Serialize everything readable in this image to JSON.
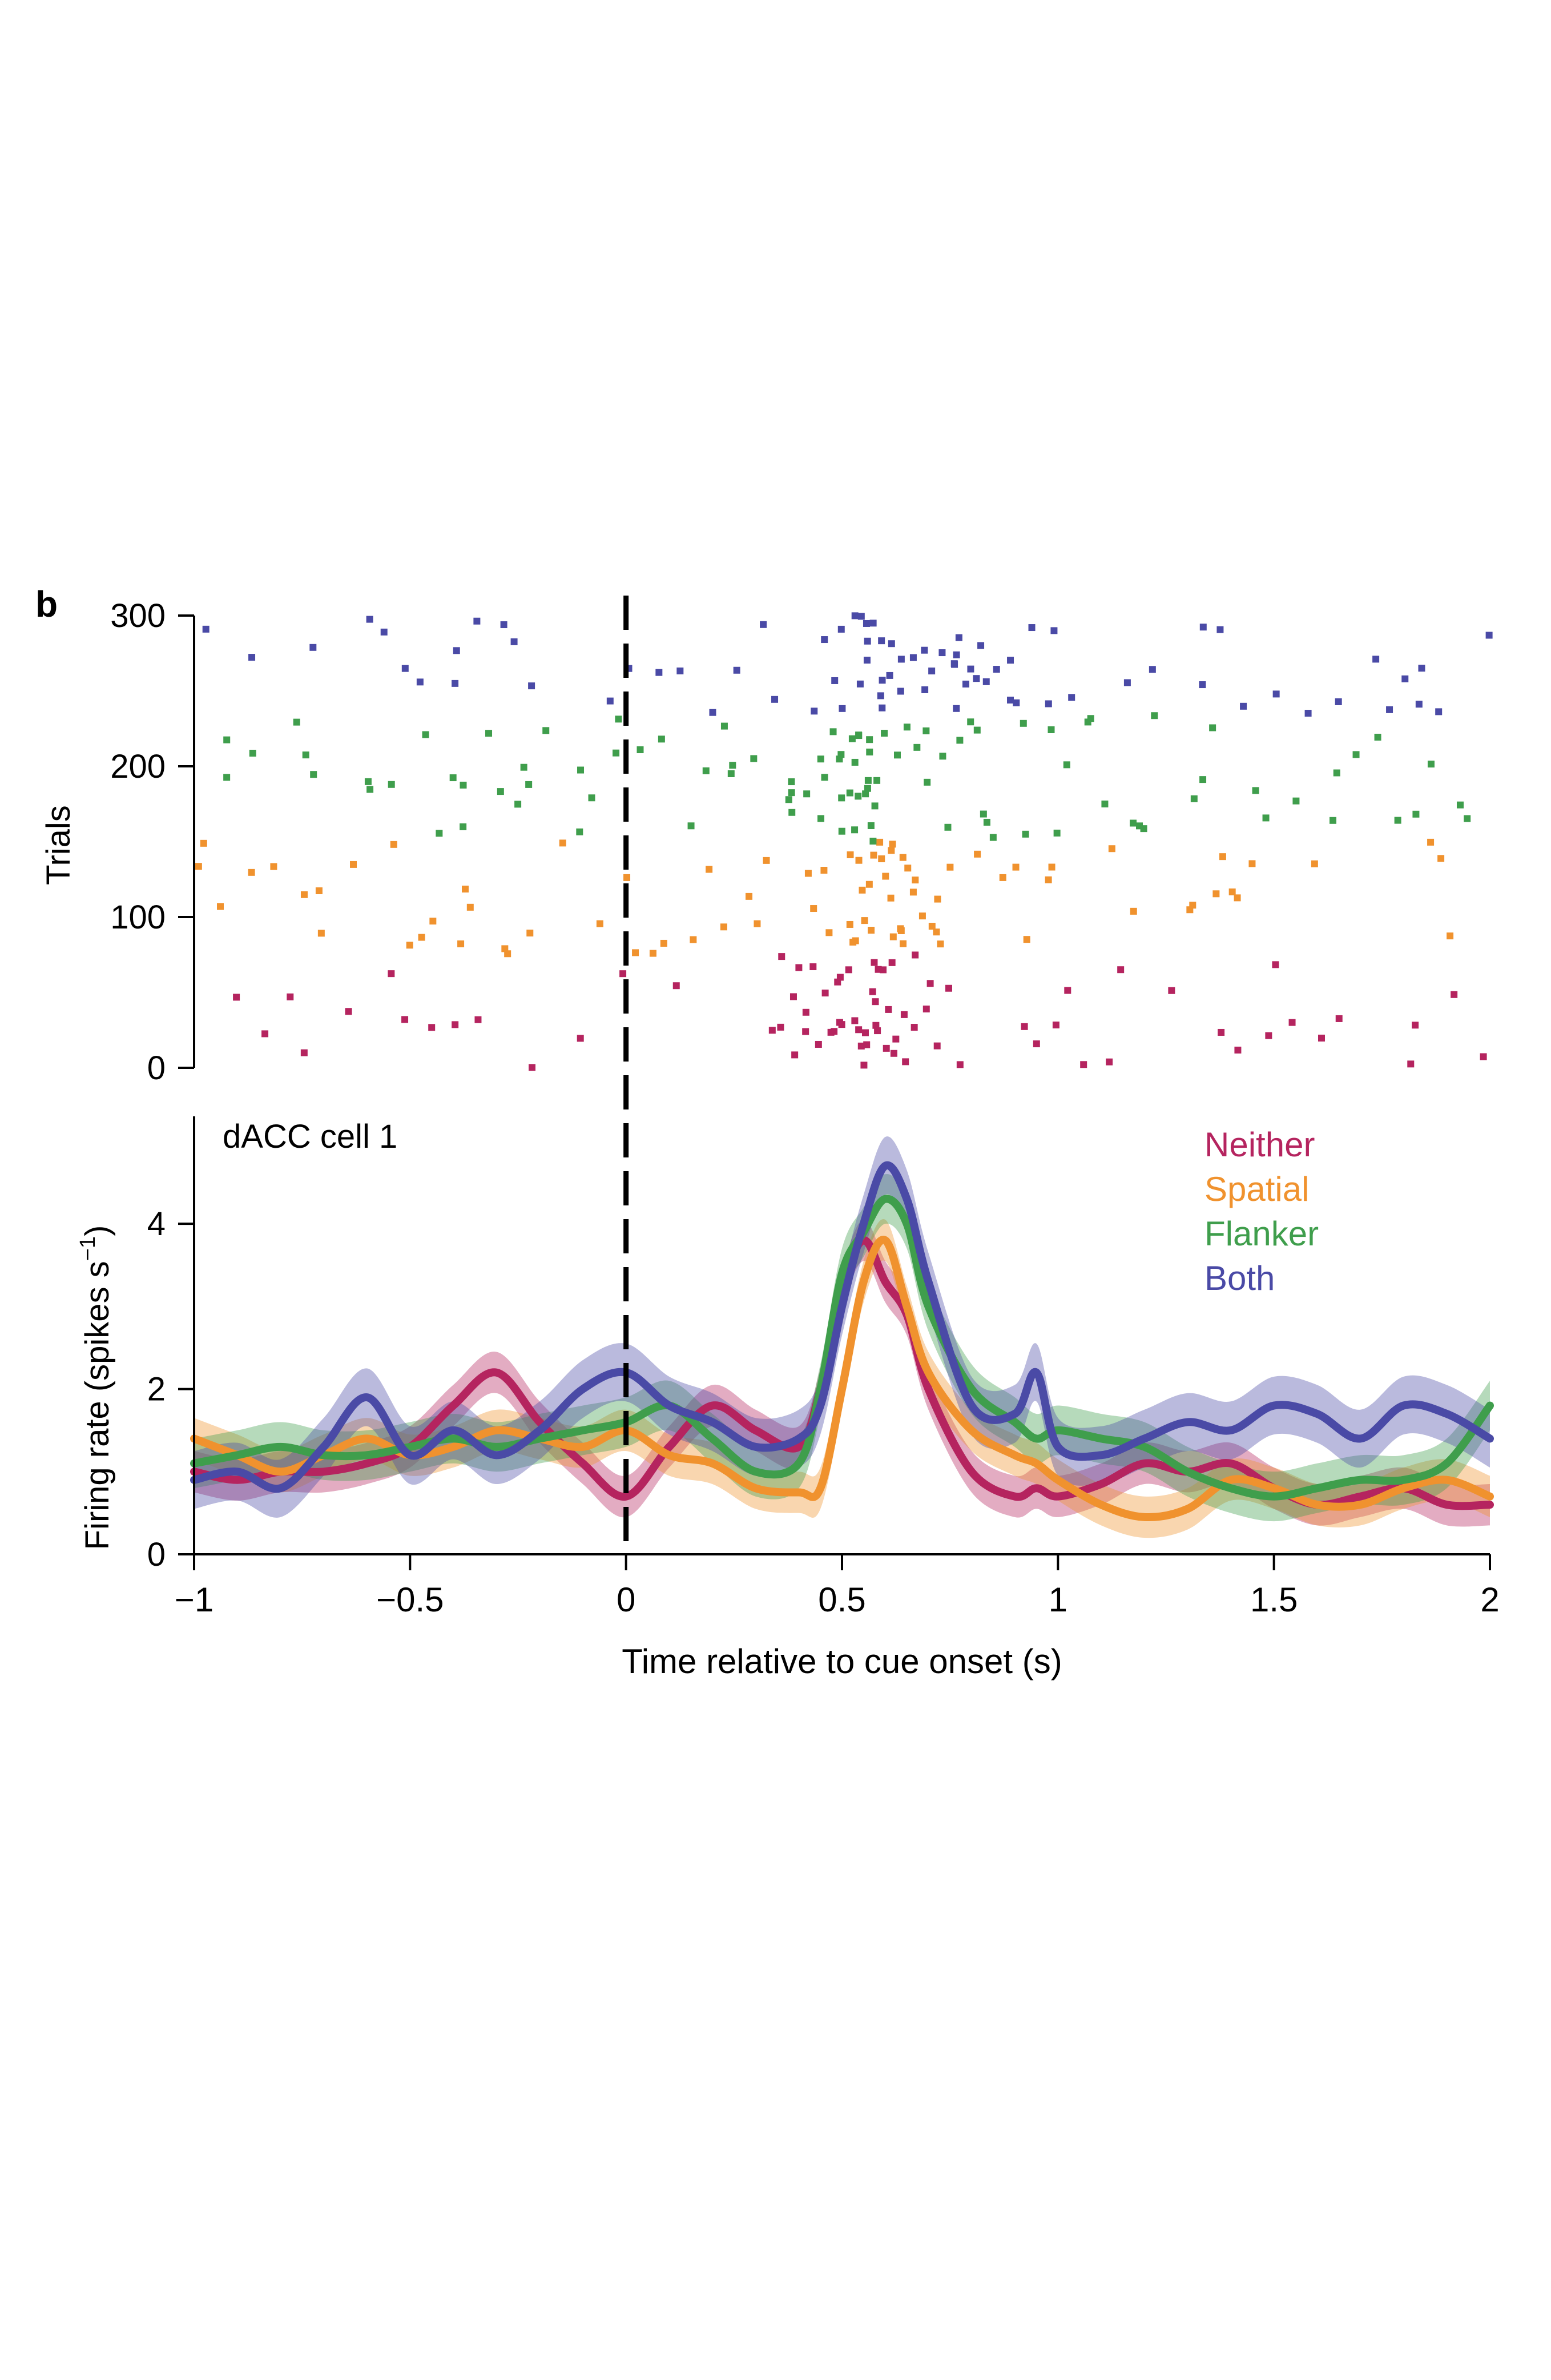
{
  "panel_label": "b",
  "colors": {
    "Neither": "#b5245f",
    "Spatial": "#f0922e",
    "Flanker": "#3f9e4c",
    "Both": "#4a4aa6",
    "axis": "#000000"
  },
  "chart_data": [
    {
      "type": "scatter",
      "subtype": "raster",
      "ylabel": "Trials",
      "xlim": [
        -1,
        2
      ],
      "ylim": [
        0,
        300
      ],
      "yticks": [
        0,
        100,
        200,
        300
      ],
      "ytick_labels": [
        "0",
        "100",
        "200",
        "300"
      ],
      "cue_onset_marker_x": 0,
      "groups": [
        {
          "name": "Neither",
          "trial_range": [
            0,
            75
          ]
        },
        {
          "name": "Spatial",
          "trial_range": [
            75,
            150
          ]
        },
        {
          "name": "Flanker",
          "trial_range": [
            150,
            235
          ]
        },
        {
          "name": "Both",
          "trial_range": [
            235,
            300
          ]
        }
      ],
      "rate_profile": {
        "Neither": {
          "base": 0.1,
          "peak_center": 0.52,
          "peak_width": 0.08,
          "peak_rate": 0.7
        },
        "Spatial": {
          "base": 0.14,
          "peak_center": 0.58,
          "peak_width": 0.08,
          "peak_rate": 0.6
        },
        "Flanker": {
          "base": 0.14,
          "peak_center": 0.58,
          "peak_width": 0.1,
          "peak_rate": 0.75
        },
        "Both": {
          "base": 0.12,
          "peak_center": 0.62,
          "peak_width": 0.1,
          "peak_rate": 0.8
        }
      }
    },
    {
      "type": "line",
      "annotation": "dACC cell 1",
      "xlabel": "Time relative to cue onset (s)",
      "ylabel": "Firing rate (spikes s",
      "ylabel_superscript": "−1",
      "ylabel_close": ")",
      "xlim": [
        -1,
        2
      ],
      "ylim": [
        0,
        5.3
      ],
      "xticks": [
        -1,
        -0.5,
        0,
        0.5,
        1,
        1.5,
        2
      ],
      "xtick_labels": [
        "−1",
        "−0.5",
        "0",
        "0.5",
        "1",
        "1.5",
        "2"
      ],
      "yticks": [
        0,
        2,
        4
      ],
      "ytick_labels": [
        "0",
        "2",
        "4"
      ],
      "cue_onset_marker_x": 0,
      "legend_position": "top-right",
      "legend": [
        "Neither",
        "Spatial",
        "Flanker",
        "Both"
      ],
      "x": [
        -1,
        -0.9,
        -0.8,
        -0.7,
        -0.6,
        -0.5,
        -0.4,
        -0.3,
        -0.2,
        -0.1,
        0,
        0.1,
        0.2,
        0.3,
        0.4,
        0.45,
        0.5,
        0.55,
        0.6,
        0.65,
        0.7,
        0.8,
        0.9,
        0.95,
        1,
        1.1,
        1.2,
        1.3,
        1.4,
        1.5,
        1.6,
        1.7,
        1.8,
        1.9,
        2
      ],
      "series": [
        {
          "name": "Neither",
          "band": 0.25,
          "values": [
            1.0,
            0.9,
            1.0,
            1.0,
            1.1,
            1.3,
            1.8,
            2.2,
            1.6,
            1.1,
            0.7,
            1.3,
            1.8,
            1.5,
            1.3,
            2.0,
            3.2,
            3.8,
            3.3,
            2.9,
            2.0,
            1.0,
            0.7,
            0.8,
            0.7,
            0.85,
            1.1,
            1.0,
            1.1,
            0.8,
            0.6,
            0.7,
            0.8,
            0.6,
            0.6
          ]
        },
        {
          "name": "Spatial",
          "band": 0.25,
          "values": [
            1.4,
            1.2,
            1.0,
            1.2,
            1.4,
            1.2,
            1.3,
            1.5,
            1.4,
            1.3,
            1.5,
            1.2,
            1.1,
            0.8,
            0.75,
            0.8,
            2.0,
            3.3,
            3.8,
            3.0,
            2.2,
            1.5,
            1.2,
            1.1,
            0.9,
            0.6,
            0.45,
            0.55,
            0.9,
            0.8,
            0.6,
            0.6,
            0.8,
            0.9,
            0.7
          ]
        },
        {
          "name": "Flanker",
          "band": 0.3,
          "values": [
            1.1,
            1.2,
            1.3,
            1.2,
            1.2,
            1.3,
            1.4,
            1.3,
            1.4,
            1.5,
            1.6,
            1.8,
            1.4,
            1.0,
            1.1,
            2.0,
            3.4,
            3.9,
            4.3,
            4.0,
            3.0,
            2.0,
            1.6,
            1.4,
            1.5,
            1.4,
            1.3,
            1.0,
            0.8,
            0.7,
            0.8,
            0.9,
            0.9,
            1.1,
            1.8
          ]
        },
        {
          "name": "Both",
          "band": 0.35,
          "values": [
            0.9,
            1.0,
            0.8,
            1.3,
            1.9,
            1.2,
            1.5,
            1.2,
            1.5,
            2.0,
            2.2,
            1.8,
            1.6,
            1.3,
            1.4,
            1.8,
            3.0,
            4.0,
            4.7,
            4.3,
            3.3,
            1.8,
            1.7,
            2.2,
            1.3,
            1.2,
            1.4,
            1.6,
            1.5,
            1.8,
            1.7,
            1.4,
            1.8,
            1.7,
            1.4
          ]
        }
      ]
    }
  ]
}
